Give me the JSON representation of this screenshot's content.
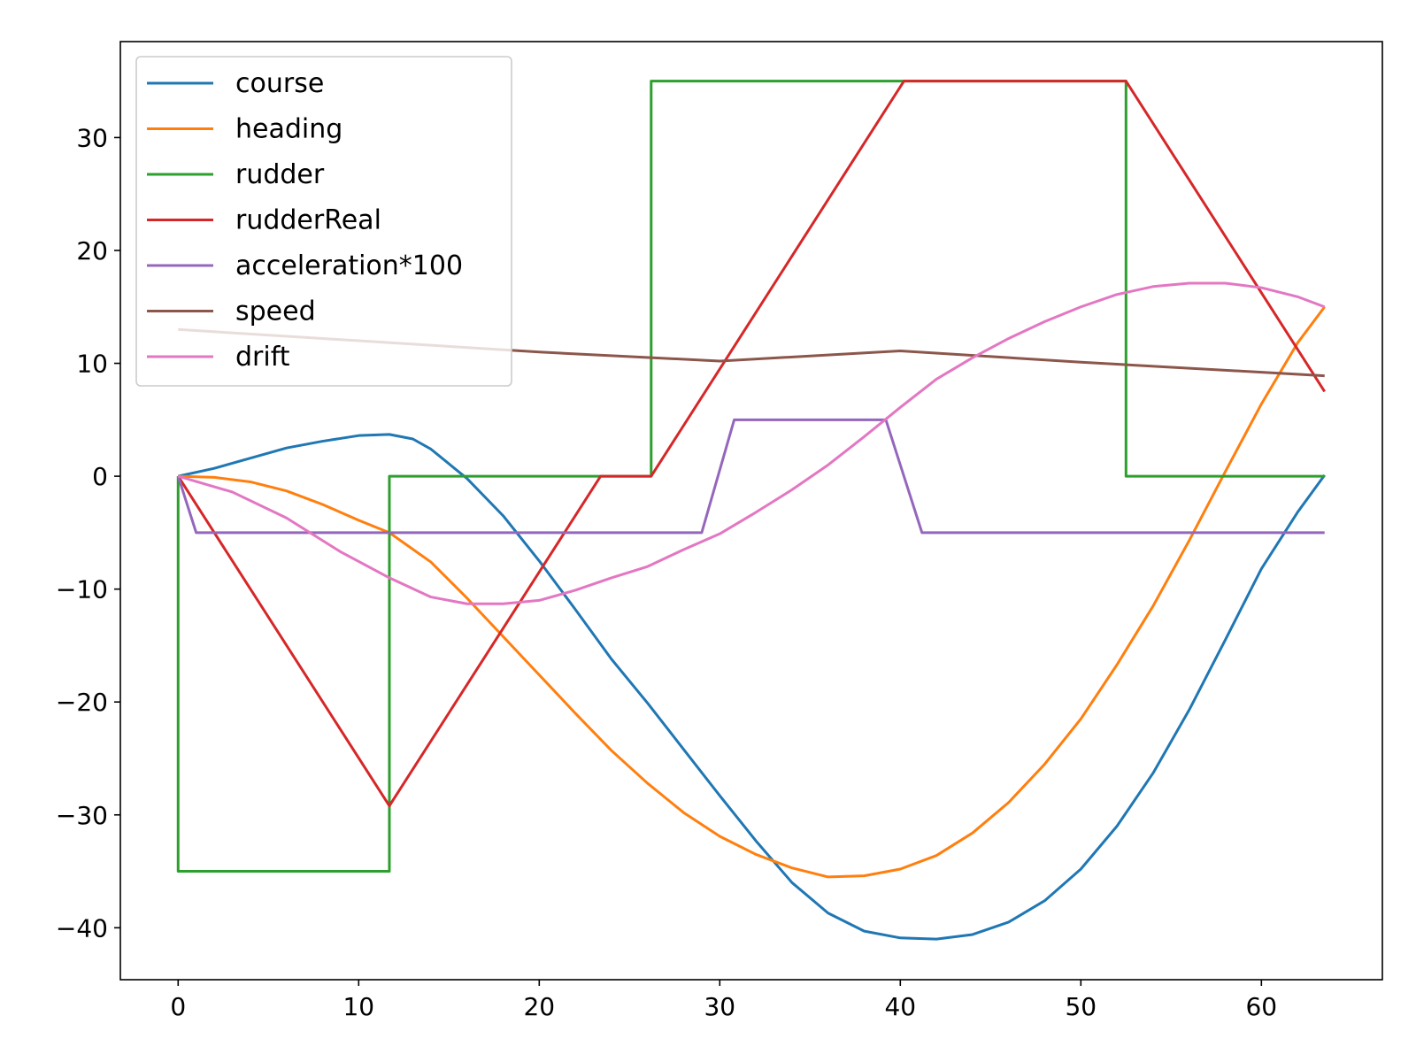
{
  "chart_data": {
    "type": "line",
    "title": "",
    "xlabel": "",
    "ylabel": "",
    "xlim": [
      -3.2,
      66.7
    ],
    "ylim": [
      -44.6,
      38.5
    ],
    "xticks": [
      0,
      10,
      20,
      30,
      40,
      50,
      60
    ],
    "yticks": [
      -40,
      -30,
      -20,
      -10,
      0,
      10,
      20,
      30
    ],
    "grid": false,
    "legend_position": "upper-left",
    "series": [
      {
        "name": "course",
        "color": "#1f77b4",
        "points": [
          [
            0,
            0
          ],
          [
            2,
            0.7
          ],
          [
            4,
            1.6
          ],
          [
            6,
            2.5
          ],
          [
            8,
            3.1
          ],
          [
            10,
            3.6
          ],
          [
            11.7,
            3.7
          ],
          [
            13,
            3.3
          ],
          [
            14,
            2.4
          ],
          [
            16,
            -0.2
          ],
          [
            18,
            -3.5
          ],
          [
            20,
            -7.5
          ],
          [
            22,
            -11.8
          ],
          [
            24,
            -16.2
          ],
          [
            26,
            -20.1
          ],
          [
            28,
            -24.2
          ],
          [
            30,
            -28.3
          ],
          [
            32,
            -32.3
          ],
          [
            34,
            -36
          ],
          [
            36,
            -38.7
          ],
          [
            38,
            -40.3
          ],
          [
            40,
            -40.9
          ],
          [
            42,
            -41
          ],
          [
            44,
            -40.6
          ],
          [
            46,
            -39.5
          ],
          [
            48,
            -37.6
          ],
          [
            50,
            -34.8
          ],
          [
            52,
            -31
          ],
          [
            54,
            -26.3
          ],
          [
            56,
            -20.7
          ],
          [
            58,
            -14.5
          ],
          [
            60,
            -8.2
          ],
          [
            62,
            -3.2
          ],
          [
            63.5,
            0.1
          ]
        ]
      },
      {
        "name": "heading",
        "color": "#ff7f0e",
        "points": [
          [
            0,
            0
          ],
          [
            2,
            -0.1
          ],
          [
            4,
            -0.5
          ],
          [
            6,
            -1.3
          ],
          [
            8,
            -2.5
          ],
          [
            10,
            -3.9
          ],
          [
            11.7,
            -5
          ],
          [
            14,
            -7.6
          ],
          [
            16,
            -10.8
          ],
          [
            18,
            -14.2
          ],
          [
            20,
            -17.6
          ],
          [
            22,
            -21
          ],
          [
            24,
            -24.3
          ],
          [
            26,
            -27.2
          ],
          [
            28,
            -29.8
          ],
          [
            30,
            -31.9
          ],
          [
            32,
            -33.5
          ],
          [
            34,
            -34.7
          ],
          [
            36,
            -35.5
          ],
          [
            38,
            -35.4
          ],
          [
            40,
            -34.8
          ],
          [
            42,
            -33.6
          ],
          [
            44,
            -31.6
          ],
          [
            46,
            -28.9
          ],
          [
            48,
            -25.5
          ],
          [
            50,
            -21.5
          ],
          [
            52,
            -16.7
          ],
          [
            54,
            -11.5
          ],
          [
            56,
            -5.7
          ],
          [
            58,
            0.4
          ],
          [
            60,
            6.4
          ],
          [
            62,
            11.8
          ],
          [
            63.5,
            15
          ]
        ]
      },
      {
        "name": "rudder",
        "color": "#2ca02c",
        "points": [
          [
            0,
            0
          ],
          [
            0,
            -35
          ],
          [
            11.7,
            -35
          ],
          [
            11.7,
            0
          ],
          [
            26.2,
            0
          ],
          [
            26.2,
            35
          ],
          [
            52.5,
            35
          ],
          [
            52.5,
            0
          ],
          [
            63.5,
            0
          ]
        ]
      },
      {
        "name": "rudderReal",
        "color": "#d62728",
        "points": [
          [
            0,
            0
          ],
          [
            11.7,
            -29.2
          ],
          [
            23.4,
            0
          ],
          [
            26.2,
            0
          ],
          [
            40.2,
            35
          ],
          [
            52.5,
            35
          ],
          [
            63.5,
            7.5
          ]
        ]
      },
      {
        "name": "acceleration*100",
        "color": "#9467bd",
        "points": [
          [
            0,
            0
          ],
          [
            1,
            -5
          ],
          [
            29,
            -5
          ],
          [
            30.8,
            5
          ],
          [
            39.2,
            5
          ],
          [
            41.2,
            -5
          ],
          [
            63.5,
            -5
          ]
        ]
      },
      {
        "name": "speed",
        "color": "#8c564b",
        "points": [
          [
            0,
            13
          ],
          [
            10,
            12
          ],
          [
            20,
            11
          ],
          [
            30,
            10.2
          ],
          [
            40,
            11.1
          ],
          [
            50,
            10.1
          ],
          [
            63.5,
            8.9
          ]
        ]
      },
      {
        "name": "drift",
        "color": "#e377c2",
        "points": [
          [
            0,
            0
          ],
          [
            3,
            -1.4
          ],
          [
            6,
            -3.7
          ],
          [
            9,
            -6.7
          ],
          [
            11.7,
            -9
          ],
          [
            14,
            -10.7
          ],
          [
            16,
            -11.3
          ],
          [
            18,
            -11.3
          ],
          [
            20,
            -11
          ],
          [
            22,
            -10.1
          ],
          [
            24,
            -9
          ],
          [
            26,
            -8
          ],
          [
            28,
            -6.5
          ],
          [
            30,
            -5.1
          ],
          [
            32,
            -3.2
          ],
          [
            34,
            -1.2
          ],
          [
            36,
            1
          ],
          [
            38,
            3.5
          ],
          [
            40,
            6.1
          ],
          [
            42,
            8.6
          ],
          [
            44,
            10.5
          ],
          [
            46,
            12.2
          ],
          [
            48,
            13.7
          ],
          [
            50,
            15
          ],
          [
            52,
            16.1
          ],
          [
            54,
            16.8
          ],
          [
            56,
            17.1
          ],
          [
            58,
            17.1
          ],
          [
            60,
            16.7
          ],
          [
            62,
            15.9
          ],
          [
            63.5,
            15
          ]
        ]
      }
    ]
  }
}
